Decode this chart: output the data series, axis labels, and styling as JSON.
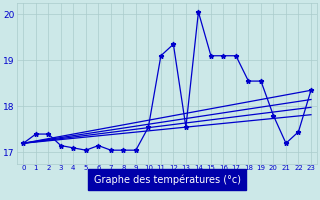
{
  "background_color": "#cce8e8",
  "grid_color": "#aacccc",
  "line_color": "#0000cc",
  "xlabel": "Graphe des températures (°c)",
  "xlabel_color": "#ffffff",
  "xlabel_bg": "#0000aa",
  "ylim": [
    16.75,
    20.25
  ],
  "xlim": [
    -0.5,
    23.5
  ],
  "yticks": [
    17,
    18,
    19,
    20
  ],
  "xticks": [
    0,
    1,
    2,
    3,
    4,
    5,
    6,
    7,
    8,
    9,
    10,
    11,
    12,
    13,
    14,
    15,
    16,
    17,
    18,
    19,
    20,
    21,
    22,
    23
  ],
  "series": {
    "main": [
      17.2,
      17.4,
      17.4,
      17.15,
      17.1,
      17.05,
      17.15,
      17.05,
      17.05,
      17.05,
      17.55,
      19.1,
      19.35,
      17.55,
      20.05,
      19.1,
      19.1,
      19.1,
      18.55,
      18.55,
      17.8,
      17.2,
      17.45,
      18.35
    ],
    "line1_x": [
      0,
      23
    ],
    "line1_y": [
      17.2,
      18.35
    ],
    "line2_x": [
      0,
      23
    ],
    "line2_y": [
      17.2,
      18.15
    ],
    "line3_x": [
      0,
      23
    ],
    "line3_y": [
      17.2,
      17.98
    ],
    "line4_x": [
      0,
      23
    ],
    "line4_y": [
      17.2,
      17.82
    ]
  },
  "figsize": [
    3.2,
    2.0
  ],
  "dpi": 100
}
